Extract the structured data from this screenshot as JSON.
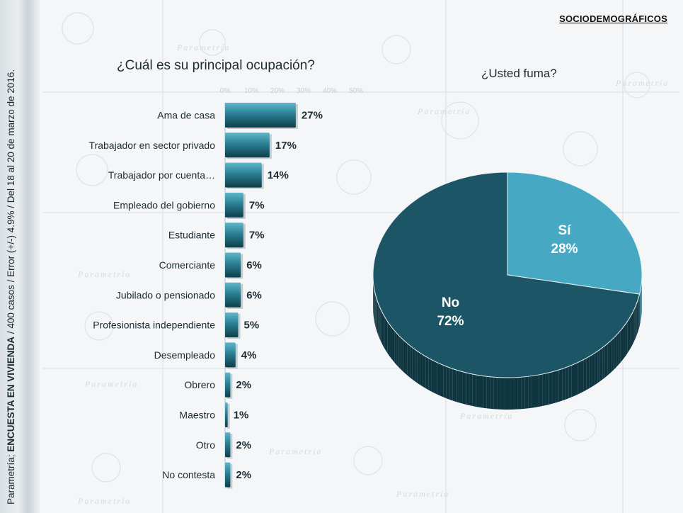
{
  "section_label": "SOCIODEMOGRÁFICOS",
  "watermark": "Parametría",
  "side_note": {
    "prefix": "Parametría; ",
    "bold": "ENCUESTA EN VIVIENDA",
    "suffix": " / 400 casos / Error (+/-) 4.9% / Del 18 al 20 de marzo de 2016."
  },
  "colors": {
    "bar_dark": "#144f5c",
    "bar_light": "#3d9bb0",
    "pie_no": "#1c5666",
    "pie_no_side": "#0f3540",
    "pie_si": "#46a8c3",
    "pie_si_side": "#2b7487"
  },
  "chart_data": [
    {
      "type": "bar",
      "orientation": "horizontal",
      "title": "¿Cuál es su principal ocupación?",
      "faint_ticks": [
        "0%",
        "10%",
        "20%",
        "30%",
        "40%",
        "50%"
      ],
      "xlim": [
        0,
        50
      ],
      "categories": [
        "Ama de casa",
        "Trabajador en sector privado",
        "Trabajador por cuenta…",
        "Empleado del gobierno",
        "Estudiante",
        "Comerciante",
        "Jubilado o pensionado",
        "Profesionista independiente",
        "Desempleado",
        "Obrero",
        "Maestro",
        "Otro",
        "No contesta"
      ],
      "values": [
        27,
        17,
        14,
        7,
        7,
        6,
        6,
        5,
        4,
        2,
        1,
        2,
        2
      ],
      "value_labels": [
        "27%",
        "17%",
        "14%",
        "7%",
        "7%",
        "6%",
        "6%",
        "5%",
        "4%",
        "2%",
        "1%",
        "2%",
        "2%"
      ]
    },
    {
      "type": "pie",
      "style": "3d",
      "title": "¿Usted fuma?",
      "slices": [
        {
          "label": "Sí",
          "value": 28,
          "value_label": "28%"
        },
        {
          "label": "No",
          "value": 72,
          "value_label": "72%"
        }
      ]
    }
  ]
}
